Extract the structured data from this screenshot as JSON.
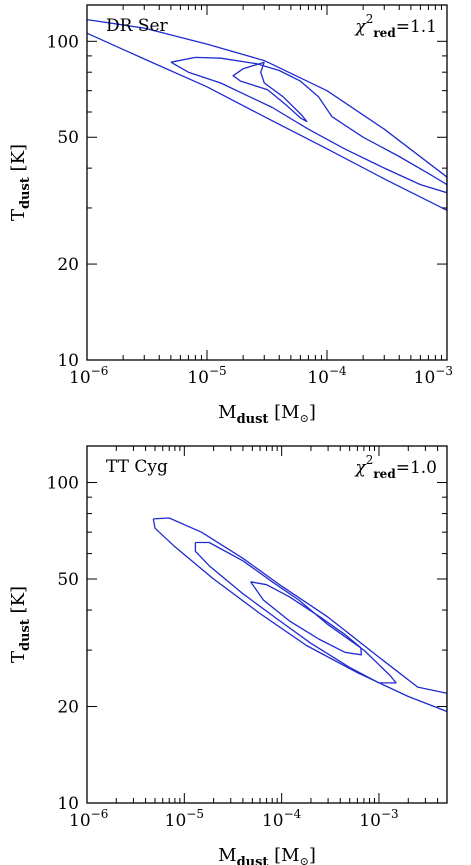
{
  "chart_data": [
    {
      "type": "contour",
      "title": "DR Ser",
      "fit_quality": {
        "symbol": "χ",
        "sup": "2",
        "sub": "red",
        "value": "=1.1"
      },
      "xlabel": {
        "main": "M",
        "sub": "dust",
        "unit_open": "[M",
        "unit_close": "]"
      },
      "ylabel": {
        "main": "T",
        "sub": "dust",
        "unit": "[K]"
      },
      "xscale": "log",
      "yscale": "log",
      "xlim": [
        1e-06,
        0.001
      ],
      "ylim": [
        10,
        130
      ],
      "xticks": [
        {
          "v": 1e-06,
          "base": "10",
          "exp": "−6"
        },
        {
          "v": 1e-05,
          "base": "10",
          "exp": "−5"
        },
        {
          "v": 0.0001,
          "base": "10",
          "exp": "−4"
        },
        {
          "v": 0.001,
          "base": "10",
          "exp": "−3"
        }
      ],
      "yticks": [
        {
          "v": 10,
          "label": "10"
        },
        {
          "v": 20,
          "label": "20"
        },
        {
          "v": 50,
          "label": "50"
        },
        {
          "v": 100,
          "label": "100"
        }
      ],
      "contours": [
        {
          "level": "inner",
          "points": [
            [
              3e-05,
              86.0
            ],
            [
              2e-05,
              82.0
            ],
            [
              1.65e-05,
              78.0
            ],
            [
              1.9e-05,
              75.0
            ],
            [
              3.2e-05,
              70.5
            ],
            [
              4.6e-05,
              63.0
            ],
            [
              6e-05,
              57.5
            ],
            [
              6.8e-05,
              56.0
            ],
            [
              6.2e-05,
              58.5
            ],
            [
              4.3e-05,
              67.0
            ],
            [
              3e-05,
              74.0
            ],
            [
              2.8e-05,
              80.0
            ],
            [
              3e-05,
              86.0
            ]
          ]
        },
        {
          "level": "middle",
          "points": [
            [
              5e-06,
              86.0
            ],
            [
              8e-06,
              89.0
            ],
            [
              1.3e-05,
              88.5
            ],
            [
              2.6e-05,
              85.0
            ],
            [
              4e-05,
              81.0
            ],
            [
              6e-05,
              75.0
            ],
            [
              8.5e-05,
              67.0
            ],
            [
              0.00011,
              58.0
            ],
            [
              0.0002,
              50.0
            ],
            [
              0.0004,
              43.5
            ],
            [
              0.0007,
              38.5
            ],
            [
              0.001,
              35.5
            ],
            [
              0.001,
              33.5
            ],
            [
              0.0006,
              35.5
            ],
            [
              0.0003,
              40.0
            ],
            [
              0.00014,
              46.0
            ],
            [
              7e-05,
              53.0
            ],
            [
              3.5e-05,
              62.0
            ],
            [
              1.3e-05,
              74.0
            ],
            [
              7e-06,
              80.0
            ],
            [
              5e-06,
              86.0
            ]
          ]
        },
        {
          "level": "outer",
          "points": [
            [
              1e-06,
              117.0
            ],
            [
              3e-06,
              110.0
            ],
            [
              1e-05,
              98.0
            ],
            [
              3e-05,
              87.0
            ],
            [
              0.0001,
              70.0
            ],
            [
              0.0003,
              53.0
            ],
            [
              0.001,
              37.5
            ],
            [
              0.001,
              29.5
            ],
            [
              0.0003,
              37.0
            ],
            [
              0.0001,
              46.0
            ],
            [
              3e-05,
              58.0
            ],
            [
              1e-05,
              72.0
            ],
            [
              3e-06,
              88.0
            ],
            [
              1e-06,
              106.0
            ]
          ]
        }
      ]
    },
    {
      "type": "contour",
      "title": "TT Cyg",
      "fit_quality": {
        "symbol": "χ",
        "sup": "2",
        "sub": "red",
        "value": "=1.0"
      },
      "xlabel": {
        "main": "M",
        "sub": "dust",
        "unit_open": "[M",
        "unit_close": "]"
      },
      "ylabel": {
        "main": "T",
        "sub": "dust",
        "unit": "[K]"
      },
      "xscale": "log",
      "yscale": "log",
      "xlim": [
        1e-06,
        0.005
      ],
      "ylim": [
        10,
        130
      ],
      "xticks": [
        {
          "v": 1e-06,
          "base": "10",
          "exp": "−6"
        },
        {
          "v": 1e-05,
          "base": "10",
          "exp": "−5"
        },
        {
          "v": 0.0001,
          "base": "10",
          "exp": "−4"
        },
        {
          "v": 0.001,
          "base": "10",
          "exp": "−3"
        }
      ],
      "yticks": [
        {
          "v": 10,
          "label": "10"
        },
        {
          "v": 20,
          "label": "20"
        },
        {
          "v": 50,
          "label": "50"
        },
        {
          "v": 100,
          "label": "100"
        }
      ],
      "contours": [
        {
          "level": "inner",
          "points": [
            [
              4.8e-05,
              49.0
            ],
            [
              7e-05,
              48.0
            ],
            [
              0.00012,
              44.0
            ],
            [
              0.00025,
              38.0
            ],
            [
              0.00045,
              33.5
            ],
            [
              0.00065,
              30.5
            ],
            [
              0.00066,
              29.0
            ],
            [
              0.00045,
              29.5
            ],
            [
              0.00024,
              32.5
            ],
            [
              0.00012,
              37.0
            ],
            [
              6.5e-05,
              43.0
            ],
            [
              4.8e-05,
              49.0
            ]
          ]
        },
        {
          "level": "middle",
          "points": [
            [
              1.3e-05,
              65.0
            ],
            [
              1.8e-05,
              65.0
            ],
            [
              4e-05,
              57.0
            ],
            [
              8e-05,
              49.0
            ],
            [
              0.00015,
              43.0
            ],
            [
              0.0003,
              36.0
            ],
            [
              0.0007,
              30.0
            ],
            [
              0.0013,
              25.0
            ],
            [
              0.0015,
              23.7
            ],
            [
              0.001,
              23.7
            ],
            [
              0.0005,
              26.5
            ],
            [
              0.0002,
              31.5
            ],
            [
              9e-05,
              37.5
            ],
            [
              4e-05,
              45.0
            ],
            [
              1.8e-05,
              55.0
            ],
            [
              1.3e-05,
              61.0
            ],
            [
              1.3e-05,
              65.0
            ]
          ]
        },
        {
          "level": "outer",
          "points": [
            [
              4.8e-06,
              77.0
            ],
            [
              7e-06,
              77.5
            ],
            [
              1.5e-05,
              70.0
            ],
            [
              4e-05,
              58.0
            ],
            [
              0.0001,
              47.5
            ],
            [
              0.0003,
              38.0
            ],
            [
              0.001,
              28.5
            ],
            [
              0.0025,
              23.0
            ],
            [
              0.005,
              22.0
            ],
            [
              0.005,
              19.3
            ],
            [
              0.002,
              21.5
            ],
            [
              0.0006,
              25.5
            ],
            [
              0.00018,
              31.0
            ],
            [
              6e-05,
              39.0
            ],
            [
              2e-05,
              50.0
            ],
            [
              8e-06,
              63.0
            ],
            [
              5e-06,
              72.0
            ],
            [
              4.8e-06,
              77.0
            ]
          ]
        }
      ]
    }
  ],
  "colors": {
    "contour": "#1f2bd0",
    "axes": "#000000",
    "background": "#ffffff"
  }
}
